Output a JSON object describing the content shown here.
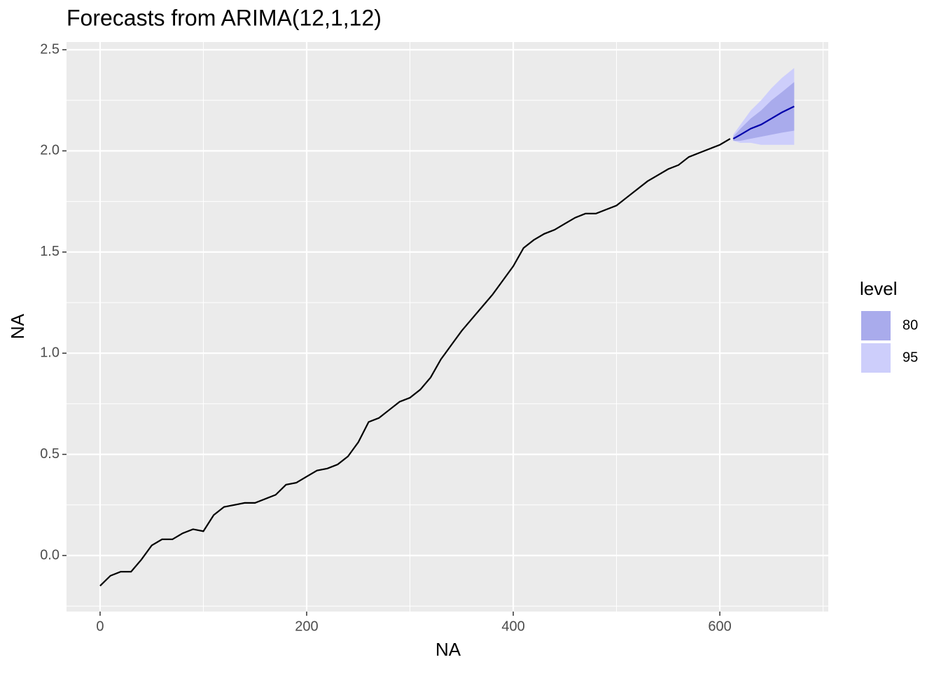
{
  "chart_data": {
    "type": "line",
    "title": "Forecasts from ARIMA(12,1,12)",
    "x_label": "NA",
    "y_label": "NA",
    "x": [
      0,
      10,
      20,
      30,
      40,
      50,
      60,
      70,
      80,
      90,
      100,
      110,
      120,
      130,
      140,
      150,
      160,
      170,
      180,
      190,
      200,
      210,
      220,
      230,
      240,
      250,
      260,
      270,
      280,
      290,
      300,
      310,
      320,
      330,
      340,
      350,
      360,
      370,
      380,
      390,
      400,
      410,
      420,
      430,
      440,
      450,
      460,
      470,
      480,
      490,
      500,
      510,
      520,
      530,
      540,
      550,
      560,
      570,
      580,
      590,
      600,
      610
    ],
    "values": [
      -0.15,
      -0.1,
      -0.08,
      -0.08,
      -0.02,
      0.05,
      0.08,
      0.08,
      0.11,
      0.13,
      0.12,
      0.2,
      0.24,
      0.25,
      0.26,
      0.26,
      0.28,
      0.3,
      0.35,
      0.36,
      0.39,
      0.42,
      0.43,
      0.45,
      0.49,
      0.56,
      0.66,
      0.68,
      0.72,
      0.76,
      0.78,
      0.82,
      0.88,
      0.97,
      1.04,
      1.11,
      1.17,
      1.23,
      1.29,
      1.36,
      1.43,
      1.52,
      1.56,
      1.59,
      1.61,
      1.64,
      1.67,
      1.69,
      1.69,
      1.71,
      1.73,
      1.77,
      1.81,
      1.85,
      1.88,
      1.91,
      1.93,
      1.97,
      1.99,
      2.01,
      2.03,
      2.06
    ],
    "color": "#000000",
    "forecast": {
      "x": [
        613,
        620,
        630,
        640,
        650,
        660,
        672
      ],
      "mean": [
        2.06,
        2.08,
        2.11,
        2.13,
        2.16,
        2.19,
        2.22
      ],
      "color": "#0000aa",
      "bands": [
        {
          "name": "95",
          "color": "#cdcefb",
          "lower": [
            2.05,
            2.04,
            2.04,
            2.03,
            2.03,
            2.03,
            2.03
          ],
          "upper": [
            2.08,
            2.13,
            2.2,
            2.25,
            2.31,
            2.36,
            2.41
          ]
        },
        {
          "name": "80",
          "color": "#a9abec",
          "lower": [
            2.05,
            2.05,
            2.06,
            2.07,
            2.08,
            2.09,
            2.1
          ],
          "upper": [
            2.07,
            2.11,
            2.16,
            2.2,
            2.25,
            2.29,
            2.34
          ]
        }
      ]
    },
    "legend_title": "level",
    "xlim": [
      -32.5,
      705
    ],
    "ylim": [
      -0.277,
      2.538
    ],
    "xticks": [
      0,
      200,
      400,
      600
    ],
    "x_minor_ticks": [
      100,
      300,
      500,
      700
    ],
    "yticks": [
      {
        "value": 0,
        "label": "0.0"
      },
      0.5,
      {
        "value": 1,
        "label": "1.0"
      },
      1.5,
      {
        "value": 2,
        "label": "2.0"
      },
      2.5
    ],
    "y_minor_ticks": [
      -0.25,
      0.25,
      0.75,
      1.25,
      1.75,
      2.25
    ],
    "grid": true
  }
}
